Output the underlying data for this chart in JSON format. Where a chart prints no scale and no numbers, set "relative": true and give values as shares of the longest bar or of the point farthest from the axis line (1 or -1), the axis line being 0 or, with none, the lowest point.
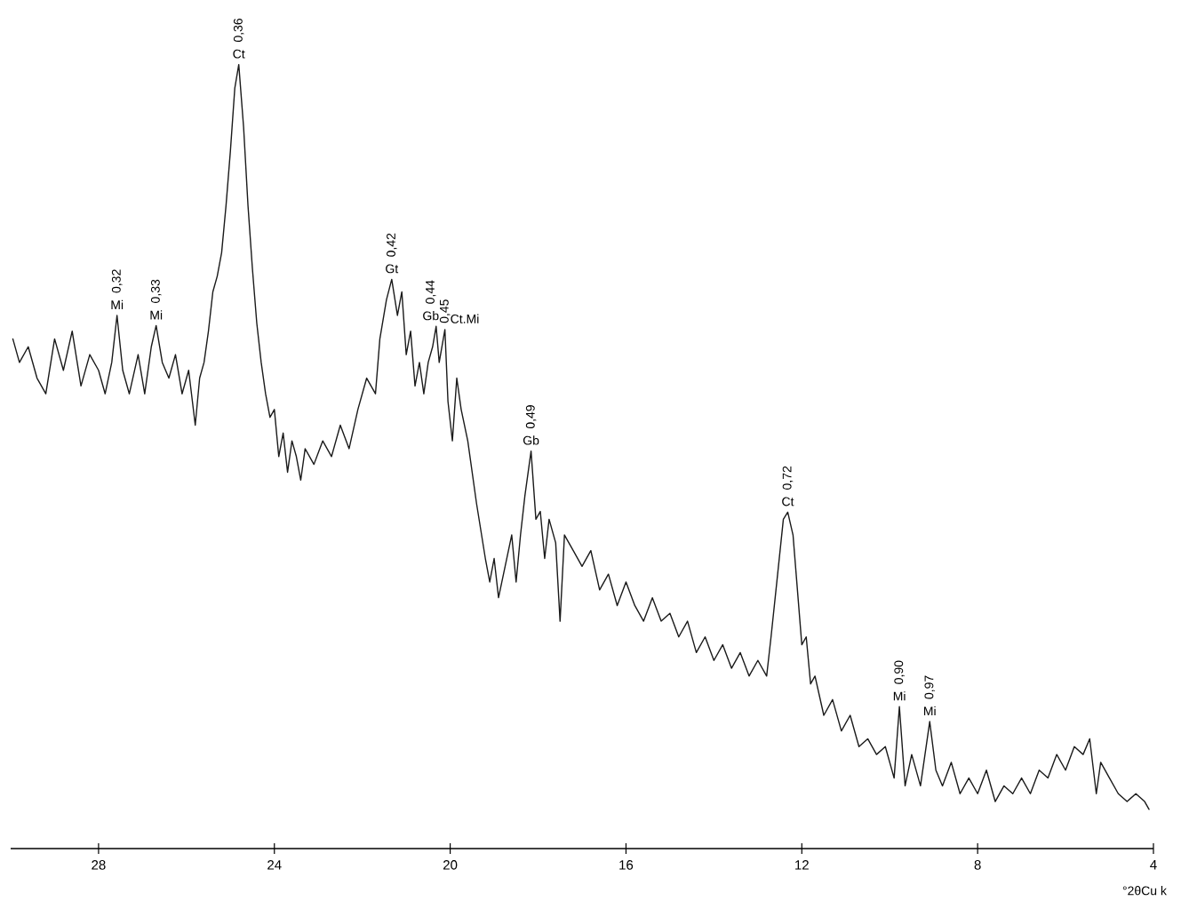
{
  "chart_data": {
    "type": "line",
    "relative": true,
    "xlabel": "°2θCu k",
    "xlim": [
      30,
      4
    ],
    "xticks": [
      28,
      24,
      20,
      16,
      12,
      8,
      4
    ],
    "series": [
      {
        "color": "#1a1a1a",
        "x": [
          29.95,
          29.8,
          29.6,
          29.4,
          29.2,
          29.0,
          28.8,
          28.6,
          28.4,
          28.2,
          28.0,
          27.85,
          27.7,
          27.58,
          27.45,
          27.3,
          27.1,
          26.95,
          26.8,
          26.69,
          26.55,
          26.4,
          26.25,
          26.1,
          25.95,
          25.8,
          25.7,
          25.6,
          25.5,
          25.4,
          25.3,
          25.2,
          25.1,
          25.0,
          24.9,
          24.81,
          24.7,
          24.6,
          24.5,
          24.4,
          24.3,
          24.2,
          24.1,
          24.0,
          23.9,
          23.8,
          23.7,
          23.6,
          23.5,
          23.4,
          23.3,
          23.1,
          22.9,
          22.7,
          22.5,
          22.3,
          22.1,
          21.9,
          21.7,
          21.6,
          21.45,
          21.33,
          21.2,
          21.1,
          21.0,
          20.9,
          20.8,
          20.7,
          20.6,
          20.5,
          20.4,
          20.32,
          20.25,
          20.12,
          20.05,
          19.95,
          19.85,
          19.75,
          19.6,
          19.4,
          19.2,
          19.1,
          19.0,
          18.9,
          18.75,
          18.6,
          18.5,
          18.4,
          18.3,
          18.16,
          18.05,
          17.95,
          17.85,
          17.75,
          17.6,
          17.5,
          17.4,
          17.2,
          17.0,
          16.8,
          16.6,
          16.4,
          16.2,
          16.0,
          15.8,
          15.6,
          15.4,
          15.2,
          15.0,
          14.8,
          14.6,
          14.4,
          14.2,
          14.0,
          13.8,
          13.6,
          13.4,
          13.2,
          13.0,
          12.8,
          12.7,
          12.55,
          12.42,
          12.32,
          12.2,
          12.1,
          12.0,
          11.9,
          11.8,
          11.7,
          11.5,
          11.3,
          11.1,
          10.9,
          10.7,
          10.5,
          10.3,
          10.1,
          9.9,
          9.78,
          9.65,
          9.5,
          9.3,
          9.09,
          8.95,
          8.8,
          8.6,
          8.4,
          8.2,
          8.0,
          7.8,
          7.6,
          7.4,
          7.2,
          7.0,
          6.8,
          6.6,
          6.4,
          6.2,
          6.0,
          5.8,
          5.6,
          5.45,
          5.3,
          5.2,
          5.0,
          4.8,
          4.6,
          4.4,
          4.2,
          4.1
        ],
        "values": [
          0.65,
          0.62,
          0.64,
          0.6,
          0.58,
          0.65,
          0.61,
          0.66,
          0.59,
          0.63,
          0.61,
          0.58,
          0.62,
          0.68,
          0.61,
          0.58,
          0.63,
          0.58,
          0.64,
          0.667,
          0.62,
          0.6,
          0.63,
          0.58,
          0.61,
          0.54,
          0.6,
          0.62,
          0.66,
          0.71,
          0.73,
          0.76,
          0.82,
          0.89,
          0.97,
          1.0,
          0.92,
          0.82,
          0.74,
          0.67,
          0.62,
          0.58,
          0.55,
          0.56,
          0.5,
          0.53,
          0.48,
          0.52,
          0.5,
          0.47,
          0.51,
          0.49,
          0.52,
          0.5,
          0.54,
          0.51,
          0.56,
          0.6,
          0.58,
          0.65,
          0.7,
          0.726,
          0.68,
          0.71,
          0.63,
          0.66,
          0.59,
          0.62,
          0.58,
          0.62,
          0.64,
          0.666,
          0.62,
          0.662,
          0.57,
          0.52,
          0.6,
          0.56,
          0.52,
          0.44,
          0.37,
          0.34,
          0.37,
          0.32,
          0.36,
          0.4,
          0.34,
          0.4,
          0.45,
          0.507,
          0.42,
          0.43,
          0.37,
          0.42,
          0.39,
          0.29,
          0.4,
          0.38,
          0.36,
          0.38,
          0.33,
          0.35,
          0.31,
          0.34,
          0.31,
          0.29,
          0.32,
          0.29,
          0.3,
          0.27,
          0.29,
          0.25,
          0.27,
          0.24,
          0.26,
          0.23,
          0.25,
          0.22,
          0.24,
          0.22,
          0.27,
          0.35,
          0.42,
          0.429,
          0.4,
          0.33,
          0.26,
          0.27,
          0.21,
          0.22,
          0.17,
          0.19,
          0.15,
          0.17,
          0.13,
          0.14,
          0.12,
          0.13,
          0.09,
          0.181,
          0.08,
          0.12,
          0.08,
          0.162,
          0.1,
          0.08,
          0.11,
          0.07,
          0.09,
          0.07,
          0.1,
          0.06,
          0.08,
          0.07,
          0.09,
          0.07,
          0.1,
          0.09,
          0.12,
          0.1,
          0.13,
          0.12,
          0.14,
          0.07,
          0.11,
          0.09,
          0.07,
          0.06,
          0.07,
          0.06,
          0.05
        ]
      }
    ],
    "annotations": [
      {
        "text": "Mi",
        "x": 27.58,
        "y": 0.68
      },
      {
        "text": "0,32",
        "x": 27.58,
        "y": 0.68
      },
      {
        "text": "Mi",
        "x": 26.69,
        "y": 0.667
      },
      {
        "text": "0,33",
        "x": 26.69,
        "y": 0.667
      },
      {
        "text": "Ct",
        "x": 24.81,
        "y": 1.0
      },
      {
        "text": "0,36",
        "x": 24.81,
        "y": 1.0
      },
      {
        "text": "Gt",
        "x": 21.33,
        "y": 0.726
      },
      {
        "text": "0,42",
        "x": 21.33,
        "y": 0.726
      },
      {
        "text": "Gb",
        "x": 20.32,
        "y": 0.666
      },
      {
        "text": "0,44",
        "x": 20.32,
        "y": 0.666
      },
      {
        "text": "Ct.Mi",
        "x": 20.12,
        "y": 0.662
      },
      {
        "text": "0,45",
        "x": 20.12,
        "y": 0.662
      },
      {
        "text": "Gb",
        "x": 18.16,
        "y": 0.507
      },
      {
        "text": "0,49",
        "x": 18.16,
        "y": 0.507
      },
      {
        "text": "Ct",
        "x": 12.32,
        "y": 0.429
      },
      {
        "text": "0,72",
        "x": 12.32,
        "y": 0.429
      },
      {
        "text": "Mi",
        "x": 9.78,
        "y": 0.181
      },
      {
        "text": "0,90",
        "x": 9.78,
        "y": 0.181
      },
      {
        "text": "Mi",
        "x": 9.09,
        "y": 0.162
      },
      {
        "text": "0,97",
        "x": 9.09,
        "y": 0.162
      }
    ]
  }
}
